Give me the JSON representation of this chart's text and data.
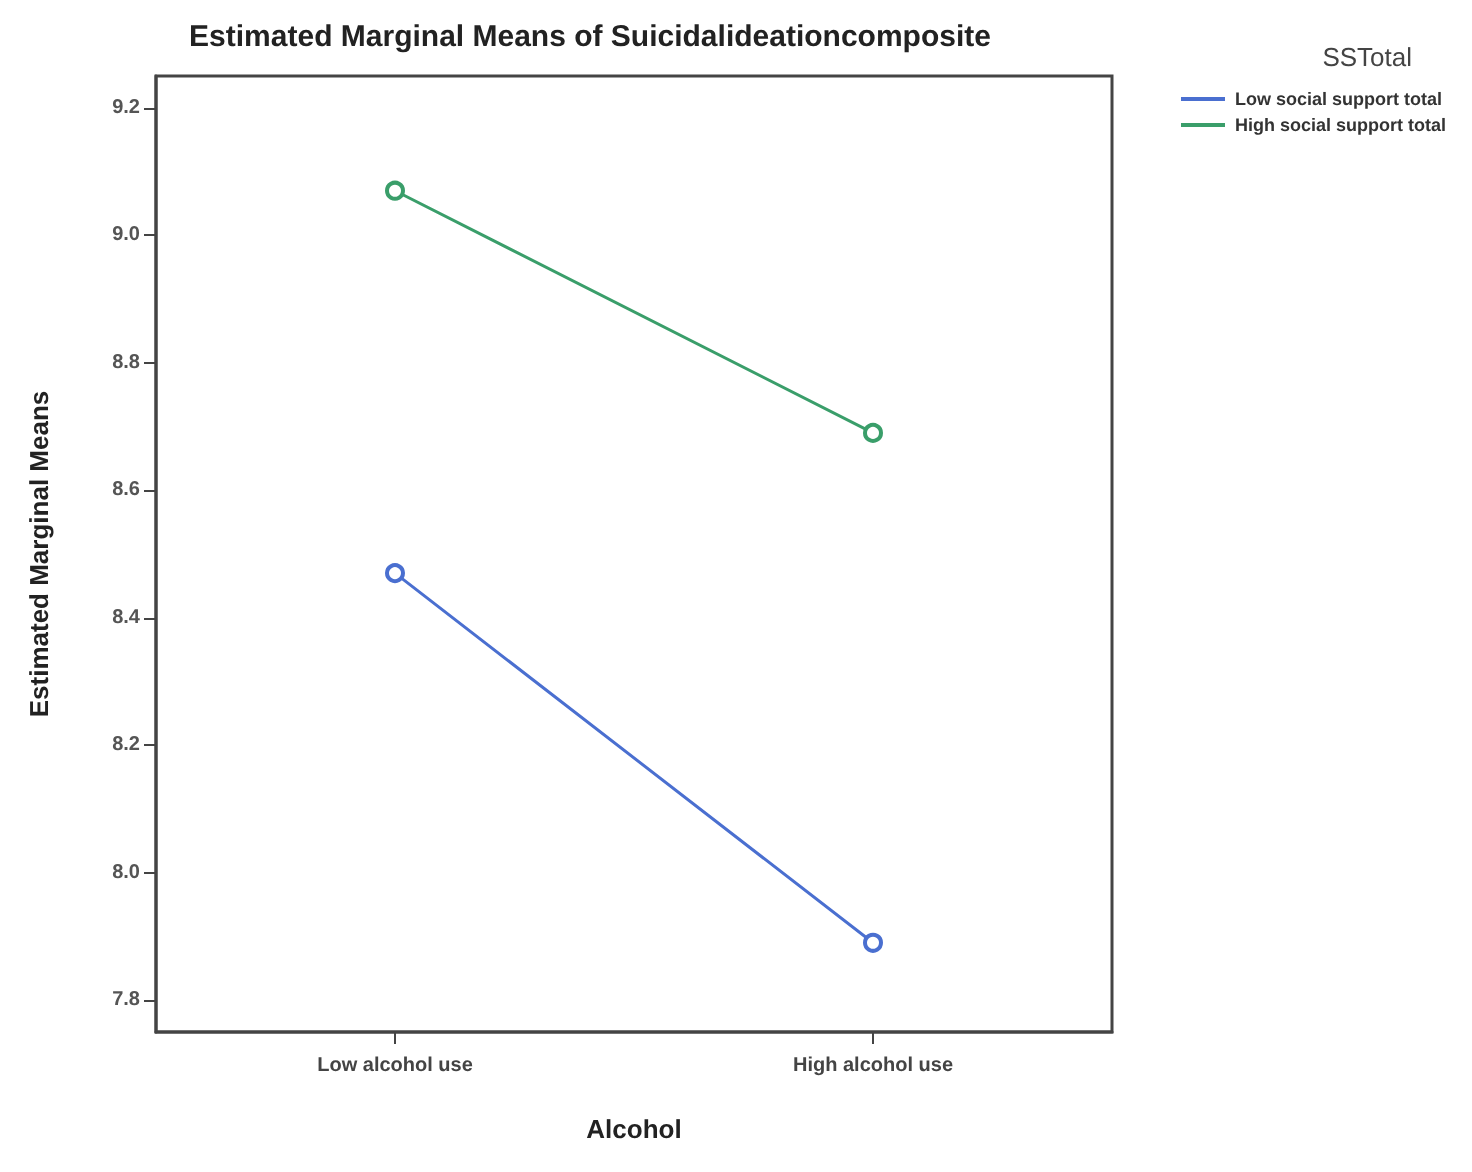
{
  "chart_data": {
    "type": "line",
    "title": "Estimated Marginal Means of Suicidalideationcomposite",
    "xlabel": "Alcohol",
    "ylabel": "Estimated Marginal Means",
    "legend_title": "SSTotal",
    "categories": [
      "Low alcohol use",
      "High alcohol use"
    ],
    "series": [
      {
        "name": "Low social support total",
        "color": "#4a6fd0",
        "values": [
          8.47,
          7.89
        ]
      },
      {
        "name": "High social support total",
        "color": "#3a9e6a",
        "values": [
          9.07,
          8.69
        ]
      }
    ],
    "ylim": [
      7.75,
      9.25
    ],
    "yticks": [
      7.8,
      {
        "value": 8,
        "label": "8.0"
      },
      8.2,
      8.4,
      8.6,
      8.8,
      {
        "value": 9,
        "label": "9.0"
      },
      9.2
    ],
    "grid": false,
    "legend": "top right",
    "marker": "circle",
    "line_style": "solid"
  }
}
